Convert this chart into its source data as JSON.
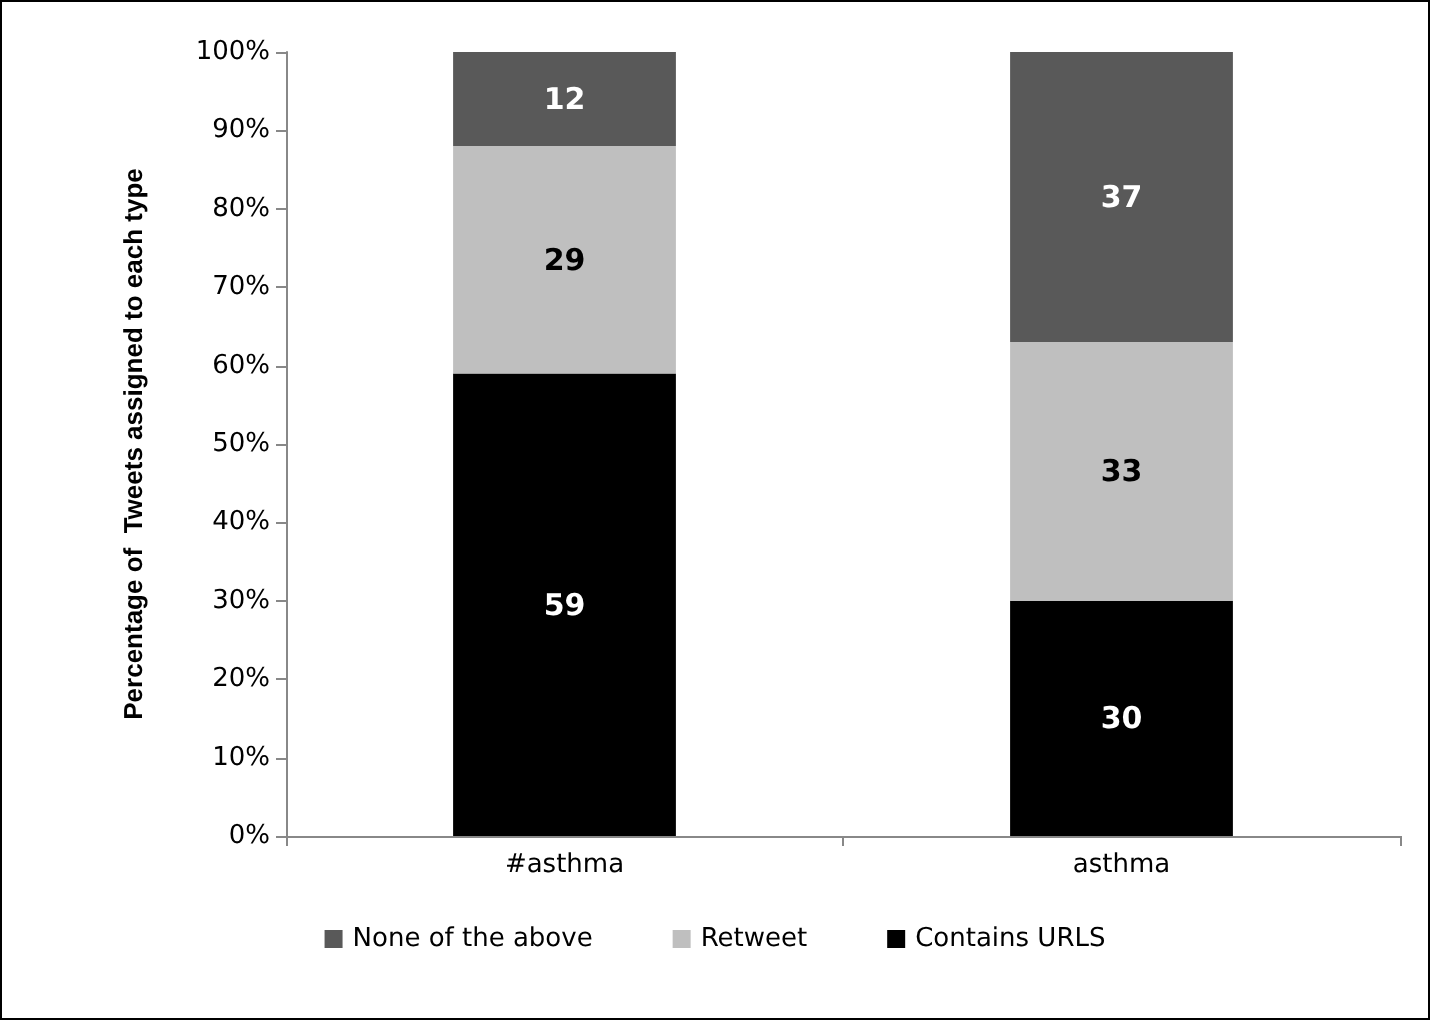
{
  "chart_data": {
    "type": "bar",
    "stacked": true,
    "ylabel": "Percentage of  Tweets assigned to each type",
    "categories": [
      "#asthma",
      "asthma"
    ],
    "series": [
      {
        "name": "Contains URLS",
        "color": "#000000",
        "values": [
          59,
          30
        ]
      },
      {
        "name": "Retweet",
        "color": "#bfbfbf",
        "values": [
          29,
          33
        ]
      },
      {
        "name": "None of the above",
        "color": "#595959",
        "values": [
          12,
          37
        ]
      }
    ],
    "ylim": [
      0,
      100
    ],
    "yticks": [
      {
        "value": 0,
        "label": "0%"
      },
      {
        "value": 10,
        "label": "10%"
      },
      {
        "value": 20,
        "label": "20%"
      },
      {
        "value": 30,
        "label": "30%"
      },
      {
        "value": 40,
        "label": "40%"
      },
      {
        "value": 50,
        "label": "50%"
      },
      {
        "value": 60,
        "label": "60%"
      },
      {
        "value": 70,
        "label": "70%"
      },
      {
        "value": 80,
        "label": "80%"
      },
      {
        "value": 90,
        "label": "90%"
      },
      {
        "value": 100,
        "label": "100%"
      }
    ],
    "data_labels": true,
    "grid": false,
    "legend": "bottom"
  }
}
